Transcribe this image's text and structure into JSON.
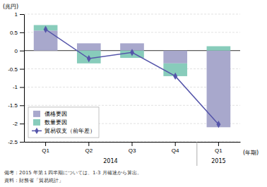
{
  "chart_data": {
    "type": "bar",
    "stacked": true,
    "grid": true,
    "legend": "lower left",
    "categories": [
      "Q1",
      "Q2",
      "Q3",
      "Q4",
      "Q1"
    ],
    "series": [
      {
        "name": "価格要因",
        "type": "bar",
        "color": "#a8a8cc",
        "values": [
          0.55,
          0.2,
          0.2,
          -0.35,
          -2.1
        ]
      },
      {
        "name": "数量要因",
        "type": "bar",
        "color": "#88ccbb",
        "values": [
          0.15,
          -0.35,
          -0.2,
          -0.35,
          0.12
        ]
      },
      {
        "name": "貿易収支（前年差）",
        "type": "line",
        "color": "#5555aa",
        "marker": "diamond",
        "values": [
          0.58,
          -0.22,
          -0.05,
          -0.7,
          -2.02
        ]
      }
    ],
    "ylim": [
      -2.5,
      1.0
    ],
    "yticks": [
      -2.5,
      -2,
      -1.5,
      -1,
      -0.5,
      0,
      0.5,
      1
    ],
    "ylabel": "(兆円)",
    "xlabel": "(年期)",
    "annotations": [
      "2014",
      "2015"
    ],
    "notes": [
      "備考：2015 年第１四半期については、1-3 月確速から算出。",
      "資料：財務省「貿易統計」"
    ]
  }
}
